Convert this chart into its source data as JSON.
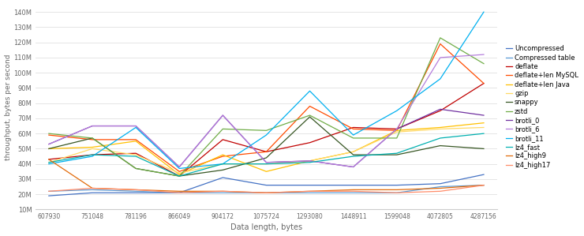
{
  "x_labels": [
    "607930",
    "751048",
    "781196",
    "866049",
    "904172",
    "1075724",
    "1293080",
    "1448911",
    "1599048",
    "4072805",
    "4287156"
  ],
  "x_values": [
    607930,
    751048,
    781196,
    866049,
    904172,
    1075724,
    1293080,
    1448911,
    1599048,
    4072805,
    4287156
  ],
  "series": [
    {
      "name": "Uncompressed",
      "color": "#4472C4",
      "values": [
        19000000.0,
        21000000.0,
        21000000.0,
        21000000.0,
        31000000.0,
        26000000.0,
        26000000.0,
        26000000.0,
        26000000.0,
        27000000.0,
        33000000.0
      ]
    },
    {
      "name": "Compressed table",
      "color": "#5B9BD5",
      "values": [
        22000000.0,
        23000000.0,
        22000000.0,
        21000000.0,
        21000000.0,
        21000000.0,
        21000000.0,
        21000000.0,
        21000000.0,
        25000000.0,
        26000000.0
      ]
    },
    {
      "name": "deflate",
      "color": "#C00000",
      "values": [
        43000000.0,
        46000000.0,
        47000000.0,
        32000000.0,
        56000000.0,
        48000000.0,
        54000000.0,
        64000000.0,
        63000000.0,
        75000000.0,
        93000000.0
      ]
    },
    {
      "name": "deflate+len MySQL",
      "color": "#FF4B00",
      "values": [
        59000000.0,
        56000000.0,
        56000000.0,
        35000000.0,
        45000000.0,
        48000000.0,
        78000000.0,
        63000000.0,
        62000000.0,
        119000000.0,
        93000000.0
      ]
    },
    {
      "name": "deflate+len Java",
      "color": "#FFC000",
      "values": [
        50000000.0,
        51000000.0,
        55000000.0,
        33000000.0,
        46000000.0,
        35000000.0,
        42000000.0,
        48000000.0,
        62000000.0,
        64000000.0,
        67000000.0
      ]
    },
    {
      "name": "gzip",
      "color": "#FFD966",
      "values": [
        41000000.0,
        50000000.0,
        46000000.0,
        34000000.0,
        40000000.0,
        40000000.0,
        42000000.0,
        48000000.0,
        61000000.0,
        63000000.0,
        64000000.0
      ]
    },
    {
      "name": "snappy",
      "color": "#375623",
      "values": [
        50000000.0,
        57000000.0,
        37000000.0,
        32000000.0,
        36000000.0,
        44000000.0,
        71000000.0,
        46000000.0,
        46000000.0,
        52000000.0,
        50000000.0
      ]
    },
    {
      "name": "zstd",
      "color": "#70AD47",
      "values": [
        60000000.0,
        57000000.0,
        37000000.0,
        32000000.0,
        63000000.0,
        62000000.0,
        72000000.0,
        57000000.0,
        57000000.0,
        123000000.0,
        106000000.0
      ]
    },
    {
      "name": "brotli_0",
      "color": "#7030A0",
      "values": [
        53000000.0,
        65000000.0,
        65000000.0,
        38000000.0,
        72000000.0,
        41000000.0,
        42000000.0,
        38000000.0,
        63000000.0,
        76000000.0,
        72000000.0
      ]
    },
    {
      "name": "brotli_6",
      "color": "#B57EDC",
      "values": [
        53000000.0,
        65000000.0,
        65000000.0,
        38000000.0,
        72000000.0,
        41000000.0,
        42000000.0,
        38000000.0,
        63000000.0,
        110000000.0,
        112000000.0
      ]
    },
    {
      "name": "brotli_11",
      "color": "#00B0F0",
      "values": [
        40000000.0,
        45000000.0,
        64000000.0,
        37000000.0,
        40000000.0,
        59000000.0,
        88000000.0,
        59000000.0,
        75000000.0,
        96000000.0,
        140000000.0
      ]
    },
    {
      "name": "lz4_fast",
      "color": "#00B0B0",
      "values": [
        41000000.0,
        46000000.0,
        45000000.0,
        32000000.0,
        40000000.0,
        40000000.0,
        41000000.0,
        45000000.0,
        47000000.0,
        57000000.0,
        60000000.0
      ]
    },
    {
      "name": "lz4_high9",
      "color": "#E26B0A",
      "values": [
        43000000.0,
        24000000.0,
        23000000.0,
        22000000.0,
        22000000.0,
        21000000.0,
        22000000.0,
        23000000.0,
        23000000.0,
        24000000.0,
        26000000.0
      ]
    },
    {
      "name": "lz4_high17",
      "color": "#FF8C69",
      "values": [
        22000000.0,
        24000000.0,
        23000000.0,
        21000000.0,
        22000000.0,
        21000000.0,
        22000000.0,
        22000000.0,
        21000000.0,
        22000000.0,
        26000000.0
      ]
    }
  ],
  "xlabel": "Data length, bytes",
  "ylabel": "throughput, bytes per second",
  "ylim_min": 10000000.0,
  "ylim_max": 145000000.0,
  "yticks": [
    10000000.0,
    20000000.0,
    30000000.0,
    40000000.0,
    50000000.0,
    60000000.0,
    70000000.0,
    80000000.0,
    90000000.0,
    100000000.0,
    110000000.0,
    120000000.0,
    130000000.0,
    140000000.0
  ],
  "ytick_labels": [
    "10M",
    "20M",
    "30M",
    "40M",
    "50M",
    "60M",
    "70M",
    "80M",
    "90M",
    "100M",
    "110M",
    "120M",
    "130M",
    "140M"
  ],
  "background_color": "#FFFFFF",
  "grid_color": "#E0E0E0"
}
